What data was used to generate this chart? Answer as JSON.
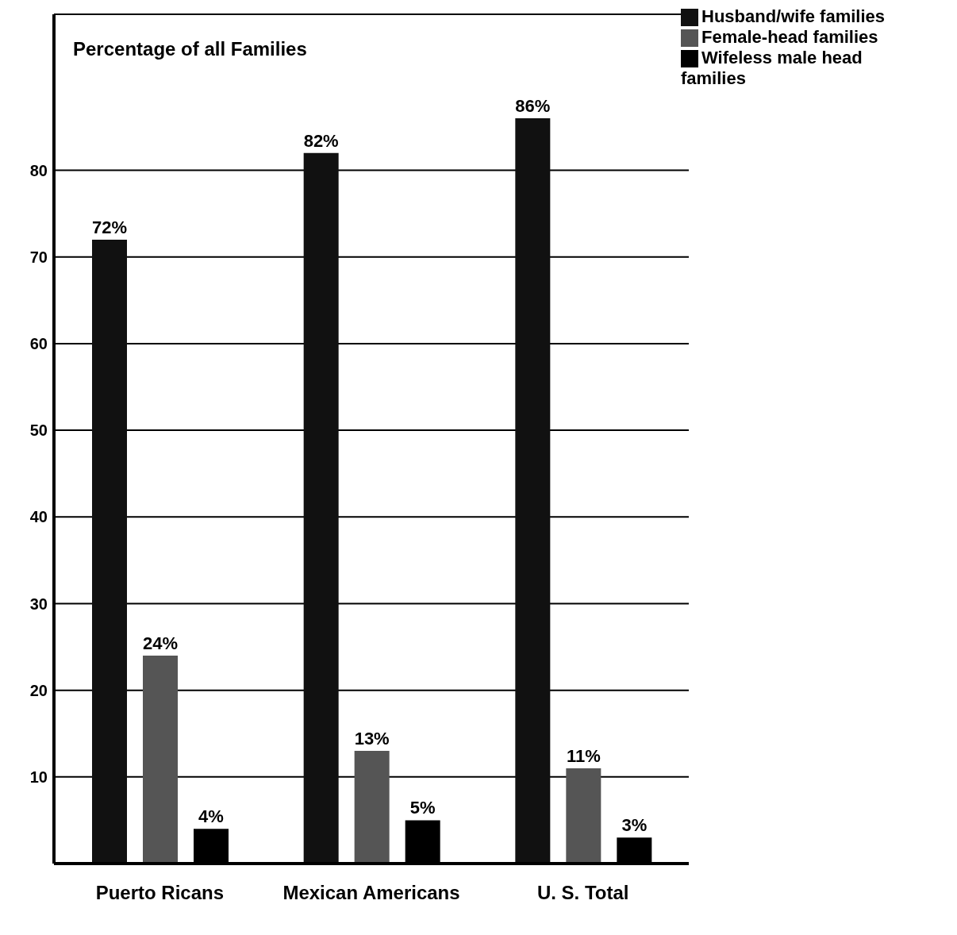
{
  "chart_data": {
    "type": "bar",
    "ylabel": "Percentage of all Families",
    "categories": [
      "Puerto Ricans",
      "Mexican Americans",
      "U. S. Total"
    ],
    "series": [
      {
        "name": "Husband/wife families",
        "color": "#111111",
        "values": [
          72,
          82,
          86
        ],
        "value_labels": [
          "72%",
          "82%",
          "86%"
        ]
      },
      {
        "name": "Female-head families",
        "color": "#555555",
        "values": [
          24,
          13,
          11
        ],
        "value_labels": [
          "24%",
          "13%",
          "11%"
        ]
      },
      {
        "name": "Wifeless male head families",
        "color": "#000000",
        "values": [
          4,
          5,
          3
        ],
        "value_labels": [
          "4%",
          "5%",
          "3%"
        ]
      }
    ],
    "ylim": [
      0,
      98
    ],
    "yticks": [
      10,
      20,
      30,
      40,
      50,
      60,
      70,
      80
    ],
    "grid": "y",
    "legend": "top right"
  }
}
